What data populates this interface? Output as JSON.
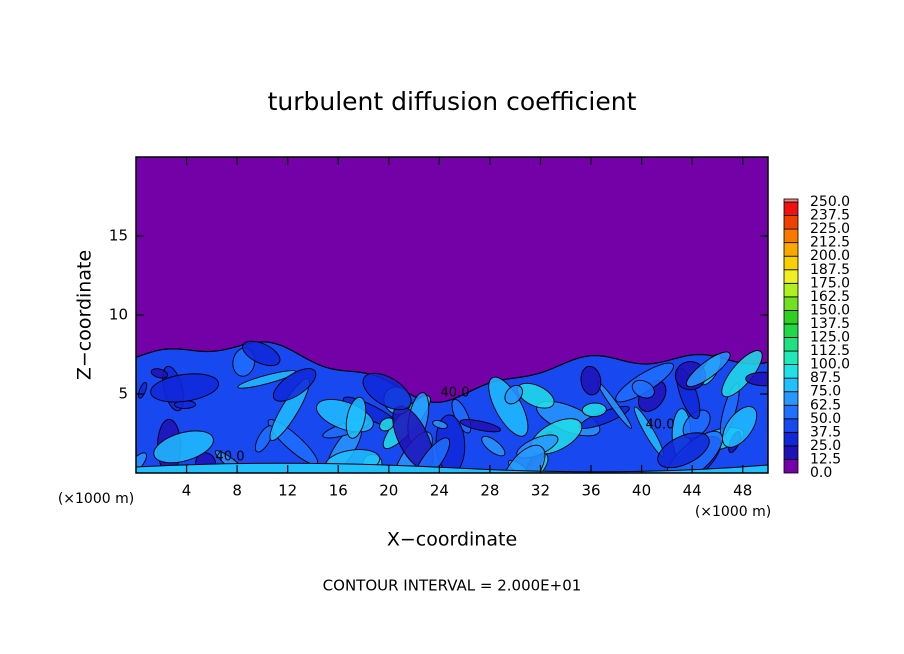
{
  "chart_data": {
    "type": "contour",
    "title": "turbulent diffusion coefficient",
    "xlabel": "X−coordinate",
    "ylabel": "Z−coordinate",
    "x_unit": "(×1000 m)",
    "footnote": "CONTOUR INTERVAL = 2.000E+01",
    "contour_labels": [
      "40.0",
      "40.0",
      "40.0"
    ],
    "xlim": [
      0,
      50
    ],
    "xticks": [
      4,
      8,
      12,
      16,
      20,
      24,
      28,
      32,
      36,
      40,
      44,
      48
    ],
    "ylim": [
      0,
      20
    ],
    "yticks": [
      5,
      10,
      15
    ],
    "levels": [
      {
        "value": 0,
        "label": "0.0"
      },
      {
        "value": 12.5,
        "label": "12.5"
      },
      {
        "value": 25,
        "label": "25.0"
      },
      {
        "value": 37.5,
        "label": "37.5"
      },
      {
        "value": 50,
        "label": "50.0"
      },
      {
        "value": 62.5,
        "label": "62.5"
      },
      {
        "value": 75,
        "label": "75.0"
      },
      {
        "value": 87.5,
        "label": "87.5"
      },
      {
        "value": 100,
        "label": "100.0"
      },
      {
        "value": 112.5,
        "label": "112.5"
      },
      {
        "value": 125,
        "label": "125.0"
      },
      {
        "value": 137.5,
        "label": "137.5"
      },
      {
        "value": 150,
        "label": "150.0"
      },
      {
        "value": 162.5,
        "label": "162.5"
      },
      {
        "value": 175,
        "label": "175.0"
      },
      {
        "value": 187.5,
        "label": "187.5"
      },
      {
        "value": 200,
        "label": "200.0"
      },
      {
        "value": 212.5,
        "label": "212.5"
      },
      {
        "value": 225,
        "label": "225.0"
      },
      {
        "value": 237.5,
        "label": "237.5"
      },
      {
        "value": 250,
        "label": "250.0"
      }
    ],
    "colors": [
      "#7400a8",
      "#2010b8",
      "#1028d8",
      "#1848f0",
      "#2070ff",
      "#2898ff",
      "#20c0ff",
      "#20e0e8",
      "#20e8b8",
      "#20e080",
      "#20d848",
      "#30d020",
      "#70e020",
      "#b0f020",
      "#f0f020",
      "#f8d000",
      "#f8a800",
      "#f87800",
      "#f04000",
      "#f01010",
      "#f08888"
    ]
  }
}
